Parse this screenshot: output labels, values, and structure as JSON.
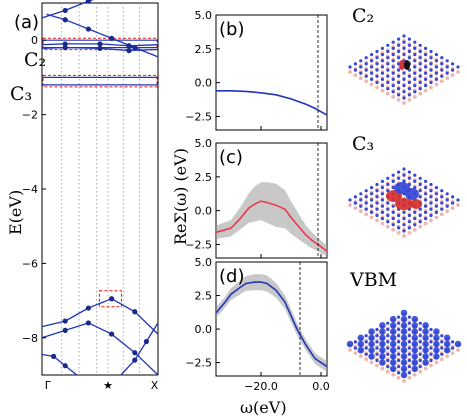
{
  "colors": {
    "band": "#1f36b8",
    "shade": "#9a9a9a",
    "pink": "#e8394d",
    "red_dash": "#e31a1c",
    "blue_atom": "#3348d6",
    "red_atom": "#d63030",
    "pink_atom": "#efb6b0"
  },
  "chart_data": [
    {
      "panel": "(a)",
      "type": "line",
      "ylabel": "E(eV)",
      "ylim": [
        -9,
        1
      ],
      "yticks": [
        "0",
        "−2",
        "−4",
        "−6",
        "−8"
      ],
      "xticks": [
        "Γ",
        "★",
        "X"
      ],
      "state_labels": [
        "C₂",
        "C₃"
      ],
      "defect_levels": [
        0,
        -0.2,
        -1.0,
        -1.2
      ],
      "series": [
        {
          "points": [
            [
              0,
              0.6
            ],
            [
              0.2,
              0.8
            ],
            [
              0.4,
              1.05
            ],
            [
              0.55,
              1.2
            ]
          ]
        },
        {
          "points": [
            [
              0.04,
              0.7
            ],
            [
              0.2,
              0.55
            ],
            [
              0.4,
              0.3
            ],
            [
              0.6,
              0.05
            ],
            [
              0.8,
              -0.2
            ],
            [
              1,
              -0.45
            ]
          ]
        },
        {
          "points": [
            [
              0,
              -0.12
            ],
            [
              0.2,
              -0.1
            ],
            [
              0.5,
              -0.1
            ],
            [
              0.75,
              -0.15
            ],
            [
              1,
              -0.12
            ]
          ]
        },
        {
          "points": [
            [
              0,
              -0.22
            ],
            [
              0.2,
              -0.2
            ],
            [
              0.5,
              -0.22
            ],
            [
              0.75,
              -0.28
            ],
            [
              1,
              -0.25
            ]
          ]
        },
        {
          "points": [
            [
              0,
              -7.7
            ],
            [
              0.2,
              -7.55
            ],
            [
              0.4,
              -7.2
            ],
            [
              0.6,
              -6.95
            ],
            [
              0.8,
              -7.3
            ],
            [
              1,
              -7.9
            ]
          ]
        },
        {
          "points": [
            [
              0,
              -8.0
            ],
            [
              0.2,
              -7.8
            ],
            [
              0.4,
              -7.6
            ],
            [
              0.6,
              -7.9
            ],
            [
              0.8,
              -8.4
            ],
            [
              1,
              -9.0
            ]
          ]
        },
        {
          "points": [
            [
              0,
              -8.45
            ],
            [
              0.1,
              -8.5
            ],
            [
              0.2,
              -8.75
            ],
            [
              0.3,
              -9.0
            ]
          ]
        },
        {
          "points": [
            [
              0.68,
              -9.0
            ],
            [
              0.8,
              -8.6
            ],
            [
              0.9,
              -8.1
            ],
            [
              1,
              -7.6
            ]
          ]
        }
      ]
    },
    {
      "panel": "(b)",
      "type": "line",
      "ylim": [
        -3.5,
        5
      ],
      "yticks": [
        "5.0",
        "2.5",
        "0.0",
        "−2.5"
      ],
      "xlim": [
        -35,
        2
      ],
      "x": [
        -35,
        -30,
        -25,
        -20,
        -15,
        -10,
        -5,
        -2,
        2
      ],
      "y": [
        -0.6,
        -0.6,
        -0.65,
        -0.75,
        -0.9,
        -1.2,
        -1.6,
        -1.9,
        -2.4
      ],
      "vline": -1
    },
    {
      "panel": "(c)",
      "type": "area",
      "ylabel": "ReΣ(ω) (eV)",
      "ylim": [
        -3.5,
        5
      ],
      "yticks": [
        "5.0",
        "2.5",
        "0.0",
        "−2.5"
      ],
      "xlim": [
        -35,
        2
      ],
      "x": [
        -35,
        -30,
        -27,
        -24,
        -22,
        -20,
        -18,
        -15,
        -12,
        -10,
        -7,
        -5,
        -3,
        -1,
        2
      ],
      "y": [
        -1.6,
        -1.3,
        -0.6,
        0.2,
        0.5,
        0.7,
        0.6,
        0.4,
        0.1,
        -0.5,
        -1.3,
        -1.8,
        -2.2,
        -2.5,
        -3.0
      ],
      "band_halfwidth": [
        0.5,
        0.6,
        0.8,
        1.1,
        1.3,
        1.4,
        1.5,
        1.6,
        1.4,
        1.2,
        0.9,
        0.7,
        0.6,
        0.5,
        0.4
      ],
      "vline": -1
    },
    {
      "panel": "(d)",
      "type": "area",
      "xlabel": "ω(eV)",
      "ylim": [
        -3.5,
        5
      ],
      "yticks": [
        "5.0",
        "2.5",
        "0.0",
        "−2.5"
      ],
      "xlim": [
        -35,
        2
      ],
      "xticks": [
        "−20.0",
        "0.0"
      ],
      "x": [
        -35,
        -32,
        -30,
        -27,
        -25,
        -22,
        -20,
        -18,
        -15,
        -12,
        -10,
        -8,
        -5,
        -2,
        2
      ],
      "y": [
        1.2,
        2.0,
        2.6,
        3.1,
        3.4,
        3.5,
        3.5,
        3.4,
        2.9,
        2.0,
        1.0,
        0.0,
        -1.2,
        -2.2,
        -2.8
      ],
      "band_halfwidth": [
        0.4,
        0.4,
        0.45,
        0.5,
        0.55,
        0.6,
        0.6,
        0.6,
        0.55,
        0.5,
        0.5,
        0.45,
        0.4,
        0.4,
        0.4
      ],
      "vline": -7
    }
  ],
  "structures": [
    {
      "label": "C₂"
    },
    {
      "label": "C₃"
    },
    {
      "label": "VBM"
    }
  ]
}
